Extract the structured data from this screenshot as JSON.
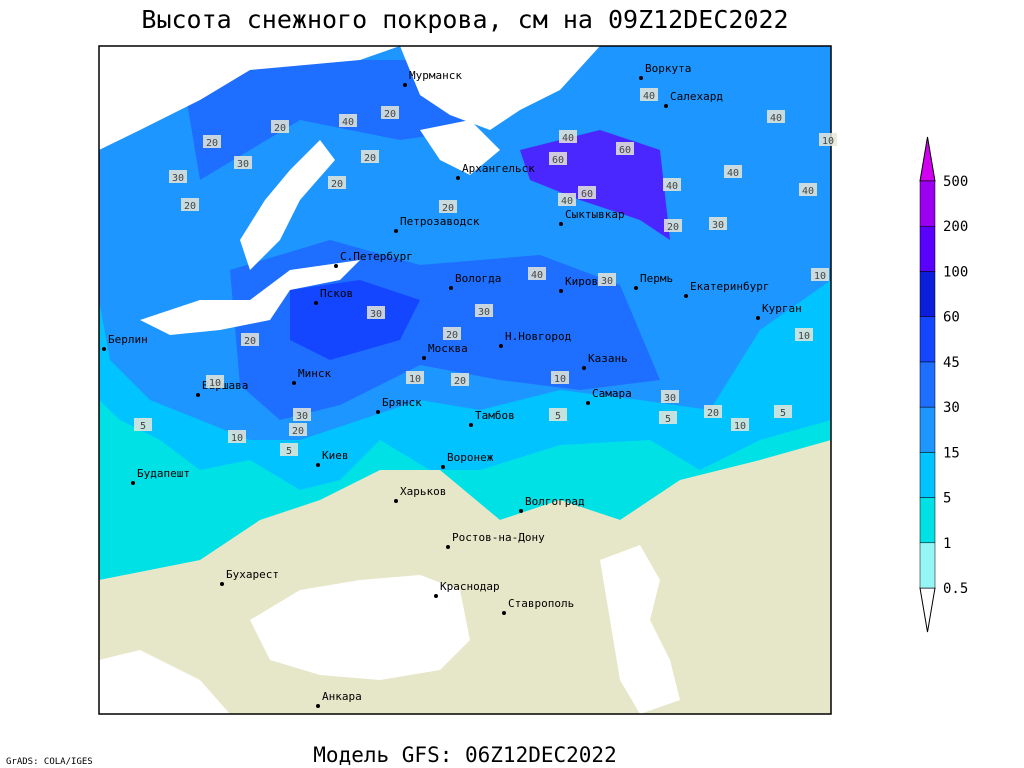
{
  "title": "Высота снежного покрова, см на 09Z12DEC2022",
  "model": "Модель GFS: 06Z12DEC2022",
  "credit": "GrADS: COLA/IGES",
  "cities": [
    "Мурманск",
    "Воркута",
    "Салехард",
    "Архангельск",
    "Петрозаводск",
    "Сыктывкар",
    "С.Петербург",
    "Вологда",
    "Киров",
    "Пермь",
    "Екатеринбург",
    "Курган",
    "Псков",
    "Берлин",
    "Н.Новгород",
    "Москва",
    "Казань",
    "Варшава",
    "Минск",
    "Самара",
    "Брянск",
    "Тамбов",
    "Киев",
    "Воронеж",
    "Будапешт",
    "Харьков",
    "Волгоград",
    "Ростов-на-Дону",
    "Бухарест",
    "Краснодар",
    "Ставрополь",
    "Анкара"
  ],
  "contour_labels": [
    20,
    40,
    20,
    20,
    30,
    30,
    20,
    20,
    20,
    20,
    40,
    60,
    60,
    40,
    60,
    40,
    40,
    40,
    40,
    40,
    20,
    30,
    30,
    30,
    30,
    20,
    20,
    40,
    10,
    20,
    10,
    30,
    20,
    10,
    5,
    5,
    5,
    30,
    20,
    10,
    5,
    5,
    10,
    10,
    10,
    10
  ],
  "legend": {
    "levels": [
      0.5,
      1,
      5,
      15,
      30,
      45,
      60,
      100,
      200,
      500
    ],
    "colors": [
      "#ffffff",
      "#96f5f5",
      "#00e1e6",
      "#00c3ff",
      "#1e96ff",
      "#1e6eff",
      "#1446ff",
      "#0a1edc",
      "#5a00ff",
      "#9b00f0",
      "#d200f0"
    ]
  }
}
